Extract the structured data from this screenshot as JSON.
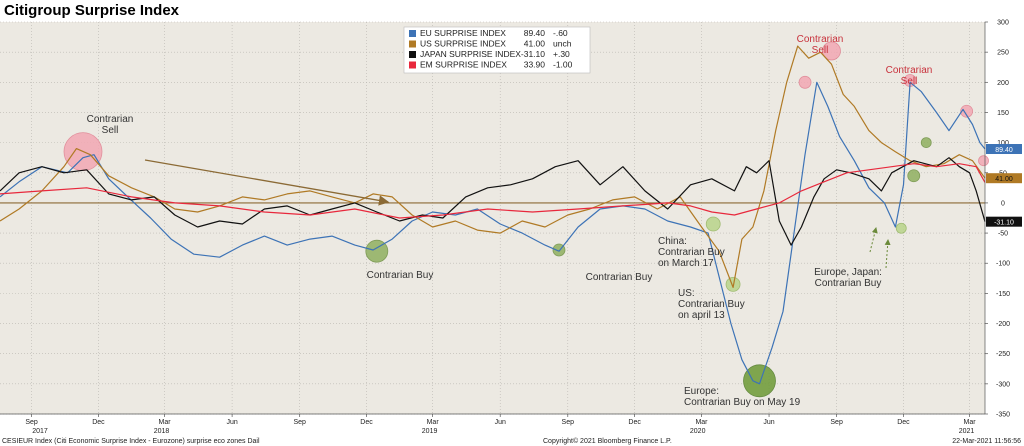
{
  "title": "Citigroup Surprise Index",
  "chart_data": {
    "type": "line",
    "ylim": [
      -350,
      300
    ],
    "yticks": [
      300,
      250,
      200,
      150,
      100,
      50,
      0,
      -50,
      -100,
      -150,
      -200,
      -250,
      -300,
      -350
    ],
    "xlim": [
      "2017-07-20",
      "2021-03-22"
    ],
    "x_month_ticks": [
      {
        "date": "2017-09-01",
        "label": "Sep"
      },
      {
        "date": "2017-12-01",
        "label": "Dec"
      },
      {
        "date": "2018-03-01",
        "label": "Mar"
      },
      {
        "date": "2018-06-01",
        "label": "Jun"
      },
      {
        "date": "2018-09-01",
        "label": "Sep"
      },
      {
        "date": "2018-12-01",
        "label": "Dec"
      },
      {
        "date": "2019-03-01",
        "label": "Mar"
      },
      {
        "date": "2019-06-01",
        "label": "Jun"
      },
      {
        "date": "2019-09-01",
        "label": "Sep"
      },
      {
        "date": "2019-12-01",
        "label": "Dec"
      },
      {
        "date": "2020-03-01",
        "label": "Mar"
      },
      {
        "date": "2020-06-01",
        "label": "Jun"
      },
      {
        "date": "2020-09-01",
        "label": "Sep"
      },
      {
        "date": "2020-12-01",
        "label": "Dec"
      },
      {
        "date": "2021-03-01",
        "label": "Mar"
      }
    ],
    "x_year_labels": [
      {
        "date": "2017-07-20",
        "label": "2017"
      },
      {
        "date": "2018-01-15",
        "label": "2018"
      },
      {
        "date": "2019-01-15",
        "label": "2019"
      },
      {
        "date": "2020-01-15",
        "label": "2020"
      },
      {
        "date": "2021-01-15",
        "label": "2021"
      }
    ],
    "legend": [
      {
        "name": "EU SURPRISE INDEX",
        "value": "89.40",
        "change": "-.60",
        "color": "#3d73b6"
      },
      {
        "name": "US SURPRISE INDEX",
        "value": "41.00",
        "change": "unch",
        "color": "#b07a25"
      },
      {
        "name": "JAPAN SURPRISE INDEX",
        "value": "-31.10",
        "change": "+.30",
        "color": "#111111"
      },
      {
        "name": "EM SURPRISE INDEX",
        "value": "33.90",
        "change": "-1.00",
        "color": "#e8283c"
      }
    ],
    "last_value_tags": [
      {
        "value": "89.40",
        "y": 89.4,
        "color": "#3d73b6",
        "text_color": "#ffffff"
      },
      {
        "value": "41.00",
        "y": 41.0,
        "color": "#b07a25",
        "text_color": "#111111"
      },
      {
        "value": "-31.10",
        "y": -31.1,
        "color": "#111111",
        "text_color": "#ffffff"
      }
    ],
    "series": [
      {
        "name": "EU SURPRISE INDEX",
        "color": "#3d73b6",
        "points": [
          [
            "2017-07-20",
            10
          ],
          [
            "2017-08-15",
            35
          ],
          [
            "2017-09-15",
            60
          ],
          [
            "2017-10-20",
            50
          ],
          [
            "2017-11-10",
            75
          ],
          [
            "2017-11-25",
            80
          ],
          [
            "2017-12-15",
            40
          ],
          [
            "2018-01-10",
            10
          ],
          [
            "2018-02-10",
            -25
          ],
          [
            "2018-03-10",
            -60
          ],
          [
            "2018-04-10",
            -85
          ],
          [
            "2018-05-15",
            -90
          ],
          [
            "2018-06-15",
            -70
          ],
          [
            "2018-07-15",
            -55
          ],
          [
            "2018-08-15",
            -70
          ],
          [
            "2018-09-15",
            -60
          ],
          [
            "2018-10-15",
            -55
          ],
          [
            "2018-11-15",
            -70
          ],
          [
            "2018-12-10",
            -78
          ],
          [
            "2019-01-05",
            -60
          ],
          [
            "2019-02-01",
            -30
          ],
          [
            "2019-03-01",
            -15
          ],
          [
            "2019-04-01",
            -20
          ],
          [
            "2019-05-01",
            -10
          ],
          [
            "2019-06-01",
            -35
          ],
          [
            "2019-07-01",
            -50
          ],
          [
            "2019-08-01",
            -70
          ],
          [
            "2019-08-20",
            -80
          ],
          [
            "2019-09-15",
            -40
          ],
          [
            "2019-10-15",
            -10
          ],
          [
            "2019-11-15",
            -5
          ],
          [
            "2019-12-15",
            -10
          ],
          [
            "2020-01-15",
            -30
          ],
          [
            "2020-02-15",
            -40
          ],
          [
            "2020-03-10",
            -50
          ],
          [
            "2020-04-10",
            -200
          ],
          [
            "2020-04-25",
            -260
          ],
          [
            "2020-05-10",
            -295
          ],
          [
            "2020-05-19",
            -300
          ],
          [
            "2020-06-05",
            -240
          ],
          [
            "2020-06-20",
            -180
          ],
          [
            "2020-07-05",
            -50
          ],
          [
            "2020-07-20",
            80
          ],
          [
            "2020-08-05",
            200
          ],
          [
            "2020-08-20",
            160
          ],
          [
            "2020-09-05",
            110
          ],
          [
            "2020-09-25",
            70
          ],
          [
            "2020-10-15",
            25
          ],
          [
            "2020-11-05",
            0
          ],
          [
            "2020-11-20",
            -40
          ],
          [
            "2020-12-01",
            30
          ],
          [
            "2020-12-10",
            200
          ],
          [
            "2020-12-25",
            185
          ],
          [
            "2021-01-15",
            150
          ],
          [
            "2021-02-01",
            120
          ],
          [
            "2021-02-20",
            155
          ],
          [
            "2021-03-05",
            130
          ],
          [
            "2021-03-15",
            100
          ],
          [
            "2021-03-22",
            89.4
          ]
        ]
      },
      {
        "name": "US SURPRISE INDEX",
        "color": "#b07a25",
        "points": [
          [
            "2017-07-20",
            -30
          ],
          [
            "2017-08-15",
            -10
          ],
          [
            "2017-09-15",
            20
          ],
          [
            "2017-10-15",
            60
          ],
          [
            "2017-11-01",
            90
          ],
          [
            "2017-11-20",
            80
          ],
          [
            "2017-12-15",
            45
          ],
          [
            "2018-01-15",
            25
          ],
          [
            "2018-02-15",
            10
          ],
          [
            "2018-03-15",
            -10
          ],
          [
            "2018-04-15",
            -15
          ],
          [
            "2018-05-15",
            -5
          ],
          [
            "2018-06-15",
            10
          ],
          [
            "2018-07-15",
            5
          ],
          [
            "2018-08-15",
            15
          ],
          [
            "2018-09-15",
            20
          ],
          [
            "2018-10-15",
            10
          ],
          [
            "2018-11-15",
            0
          ],
          [
            "2018-12-10",
            15
          ],
          [
            "2019-01-05",
            10
          ],
          [
            "2019-02-01",
            -20
          ],
          [
            "2019-03-01",
            -40
          ],
          [
            "2019-04-01",
            -30
          ],
          [
            "2019-05-01",
            -45
          ],
          [
            "2019-06-01",
            -50
          ],
          [
            "2019-07-01",
            -30
          ],
          [
            "2019-08-01",
            -40
          ],
          [
            "2019-09-01",
            -20
          ],
          [
            "2019-10-01",
            -10
          ],
          [
            "2019-11-01",
            5
          ],
          [
            "2019-12-01",
            10
          ],
          [
            "2020-01-01",
            -10
          ],
          [
            "2020-02-01",
            10
          ],
          [
            "2020-03-01",
            -40
          ],
          [
            "2020-03-25",
            -80
          ],
          [
            "2020-04-13",
            -140
          ],
          [
            "2020-04-25",
            -60
          ],
          [
            "2020-05-10",
            -40
          ],
          [
            "2020-05-25",
            20
          ],
          [
            "2020-06-10",
            120
          ],
          [
            "2020-06-25",
            200
          ],
          [
            "2020-07-10",
            260
          ],
          [
            "2020-07-25",
            240
          ],
          [
            "2020-08-10",
            250
          ],
          [
            "2020-08-25",
            230
          ],
          [
            "2020-09-10",
            180
          ],
          [
            "2020-09-25",
            160
          ],
          [
            "2020-10-15",
            120
          ],
          [
            "2020-11-01",
            100
          ],
          [
            "2020-11-20",
            85
          ],
          [
            "2020-12-10",
            70
          ],
          [
            "2021-01-01",
            60
          ],
          [
            "2021-01-25",
            65
          ],
          [
            "2021-02-15",
            80
          ],
          [
            "2021-03-05",
            70
          ],
          [
            "2021-03-22",
            41.0
          ]
        ]
      },
      {
        "name": "JAPAN SURPRISE INDEX",
        "color": "#111111",
        "points": [
          [
            "2017-07-20",
            20
          ],
          [
            "2017-08-15",
            50
          ],
          [
            "2017-09-15",
            60
          ],
          [
            "2017-10-15",
            50
          ],
          [
            "2017-11-15",
            55
          ],
          [
            "2017-12-15",
            15
          ],
          [
            "2018-01-15",
            5
          ],
          [
            "2018-02-15",
            10
          ],
          [
            "2018-03-15",
            -20
          ],
          [
            "2018-04-15",
            -40
          ],
          [
            "2018-05-15",
            -30
          ],
          [
            "2018-06-15",
            -35
          ],
          [
            "2018-07-15",
            -10
          ],
          [
            "2018-08-15",
            -5
          ],
          [
            "2018-09-15",
            -20
          ],
          [
            "2018-10-15",
            -10
          ],
          [
            "2018-11-15",
            0
          ],
          [
            "2018-12-15",
            -15
          ],
          [
            "2019-01-15",
            -30
          ],
          [
            "2019-02-15",
            -20
          ],
          [
            "2019-03-15",
            -25
          ],
          [
            "2019-04-15",
            10
          ],
          [
            "2019-05-15",
            25
          ],
          [
            "2019-06-15",
            30
          ],
          [
            "2019-07-15",
            40
          ],
          [
            "2019-08-15",
            60
          ],
          [
            "2019-09-15",
            70
          ],
          [
            "2019-10-15",
            30
          ],
          [
            "2019-11-15",
            60
          ],
          [
            "2019-12-15",
            20
          ],
          [
            "2020-01-15",
            -10
          ],
          [
            "2020-02-15",
            30
          ],
          [
            "2020-03-15",
            40
          ],
          [
            "2020-04-15",
            20
          ],
          [
            "2020-05-01",
            60
          ],
          [
            "2020-05-15",
            50
          ],
          [
            "2020-06-01",
            70
          ],
          [
            "2020-06-15",
            -30
          ],
          [
            "2020-07-01",
            -70
          ],
          [
            "2020-07-15",
            -40
          ],
          [
            "2020-08-01",
            10
          ],
          [
            "2020-08-15",
            40
          ],
          [
            "2020-09-01",
            55
          ],
          [
            "2020-09-20",
            50
          ],
          [
            "2020-10-15",
            40
          ],
          [
            "2020-11-01",
            20
          ],
          [
            "2020-11-15",
            50
          ],
          [
            "2020-12-15",
            70
          ],
          [
            "2021-01-15",
            60
          ],
          [
            "2021-02-01",
            75
          ],
          [
            "2021-02-15",
            60
          ],
          [
            "2021-03-01",
            50
          ],
          [
            "2021-03-10",
            20
          ],
          [
            "2021-03-22",
            -31.1
          ]
        ]
      },
      {
        "name": "EM SURPRISE INDEX",
        "color": "#e8283c",
        "points": [
          [
            "2017-07-20",
            15
          ],
          [
            "2017-09-15",
            20
          ],
          [
            "2017-11-15",
            25
          ],
          [
            "2018-01-15",
            10
          ],
          [
            "2018-03-15",
            0
          ],
          [
            "2018-05-15",
            -5
          ],
          [
            "2018-07-15",
            -15
          ],
          [
            "2018-09-15",
            -20
          ],
          [
            "2018-11-15",
            -10
          ],
          [
            "2019-01-15",
            -25
          ],
          [
            "2019-03-15",
            -20
          ],
          [
            "2019-05-15",
            -10
          ],
          [
            "2019-07-15",
            -15
          ],
          [
            "2019-09-15",
            -10
          ],
          [
            "2019-11-15",
            -5
          ],
          [
            "2020-01-15",
            0
          ],
          [
            "2020-02-15",
            -5
          ],
          [
            "2020-03-15",
            -15
          ],
          [
            "2020-04-15",
            -20
          ],
          [
            "2020-05-15",
            -10
          ],
          [
            "2020-06-15",
            0
          ],
          [
            "2020-07-15",
            20
          ],
          [
            "2020-08-15",
            35
          ],
          [
            "2020-09-15",
            50
          ],
          [
            "2020-10-15",
            55
          ],
          [
            "2020-11-15",
            60
          ],
          [
            "2020-12-15",
            65
          ],
          [
            "2021-01-15",
            60
          ],
          [
            "2021-02-15",
            65
          ],
          [
            "2021-03-10",
            60
          ],
          [
            "2021-03-22",
            33.9
          ]
        ]
      }
    ],
    "annotations": [
      {
        "id": "contrarian-sell-2017",
        "lines": [
          "Contrarian",
          "Sell"
        ],
        "color": "#333333"
      },
      {
        "id": "contrarian-buy-2018",
        "lines": [
          "Contrarian Buy"
        ],
        "color": "#333333"
      },
      {
        "id": "contrarian-buy-2019",
        "lines": [
          "Contrarian Buy"
        ],
        "color": "#333333"
      },
      {
        "id": "china-buy",
        "lines": [
          "China:",
          "Contrarian Buy",
          "on March 17"
        ],
        "color": "#333333"
      },
      {
        "id": "us-buy",
        "lines": [
          "US:",
          "Contrarian Buy",
          "on april 13"
        ],
        "color": "#333333"
      },
      {
        "id": "europe-buy",
        "lines": [
          "Europe:",
          "Contrarian Buy on May 19"
        ],
        "color": "#333333"
      },
      {
        "id": "contrarian-sell-2020a",
        "lines": [
          "Contrarian",
          "Sell"
        ],
        "color": "#c8323c"
      },
      {
        "id": "contrarian-sell-2020b",
        "lines": [
          "Contrarian",
          "Sell"
        ],
        "color": "#c8323c"
      },
      {
        "id": "europe-japan-buy",
        "lines": [
          "Europe, Japan:",
          "Contrarian Buy"
        ],
        "color": "#333333"
      }
    ]
  },
  "footer": {
    "left": "CESIEUR Index (Citi Economic Surprise Index - Eurozone) surprise eco zones  Dail",
    "center": "Copyright© 2021 Bloomberg Finance L.P.",
    "right": "22-Mar-2021 11:56:56"
  }
}
